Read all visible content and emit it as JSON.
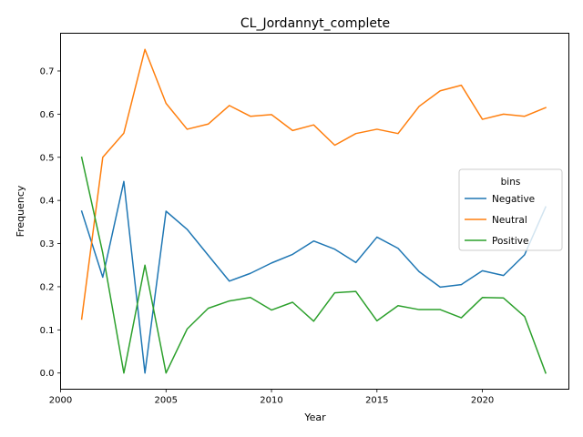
{
  "chart_data": {
    "type": "line",
    "title": "CL_Jordannyt_complete",
    "xlabel": "Year",
    "ylabel": "Frequency",
    "xlim": [
      2000.0,
      2024.1
    ],
    "ylim": [
      -0.0375,
      0.7875
    ],
    "xticks": [
      2000,
      2005,
      2010,
      2015,
      2020
    ],
    "yticks": [
      0.0,
      0.1,
      0.2,
      0.3,
      0.4,
      0.5,
      0.6,
      0.7
    ],
    "ytick_labels": [
      "0.0",
      "0.1",
      "0.2",
      "0.3",
      "0.4",
      "0.5",
      "0.6",
      "0.7"
    ],
    "grid": false,
    "legend": {
      "title": "bins",
      "placement": "center-right"
    },
    "x": [
      2001,
      2002,
      2003,
      2004,
      2005,
      2006,
      2007,
      2008,
      2009,
      2010,
      2011,
      2012,
      2013,
      2014,
      2015,
      2016,
      2017,
      2018,
      2019,
      2020,
      2021,
      2022,
      2023
    ],
    "series": [
      {
        "name": "Negative",
        "color": "#1f77b4",
        "values": [
          0.375,
          0.222,
          0.444,
          0.0,
          0.375,
          0.333,
          0.273,
          0.213,
          0.231,
          0.255,
          0.275,
          0.306,
          0.287,
          0.256,
          0.315,
          0.289,
          0.235,
          0.199,
          0.205,
          0.237,
          0.226,
          0.274,
          0.385
        ]
      },
      {
        "name": "Neutral",
        "color": "#ff7f0e",
        "values": [
          0.125,
          0.5,
          0.556,
          0.75,
          0.625,
          0.565,
          0.577,
          0.62,
          0.595,
          0.599,
          0.562,
          0.575,
          0.528,
          0.555,
          0.565,
          0.555,
          0.618,
          0.654,
          0.667,
          0.588,
          0.6,
          0.595,
          0.615
        ]
      },
      {
        "name": "Positive",
        "color": "#2ca02c",
        "values": [
          0.5,
          0.278,
          0.0,
          0.25,
          0.0,
          0.102,
          0.15,
          0.167,
          0.175,
          0.146,
          0.164,
          0.12,
          0.186,
          0.189,
          0.121,
          0.156,
          0.147,
          0.147,
          0.128,
          0.175,
          0.174,
          0.131,
          0.0
        ]
      }
    ]
  }
}
